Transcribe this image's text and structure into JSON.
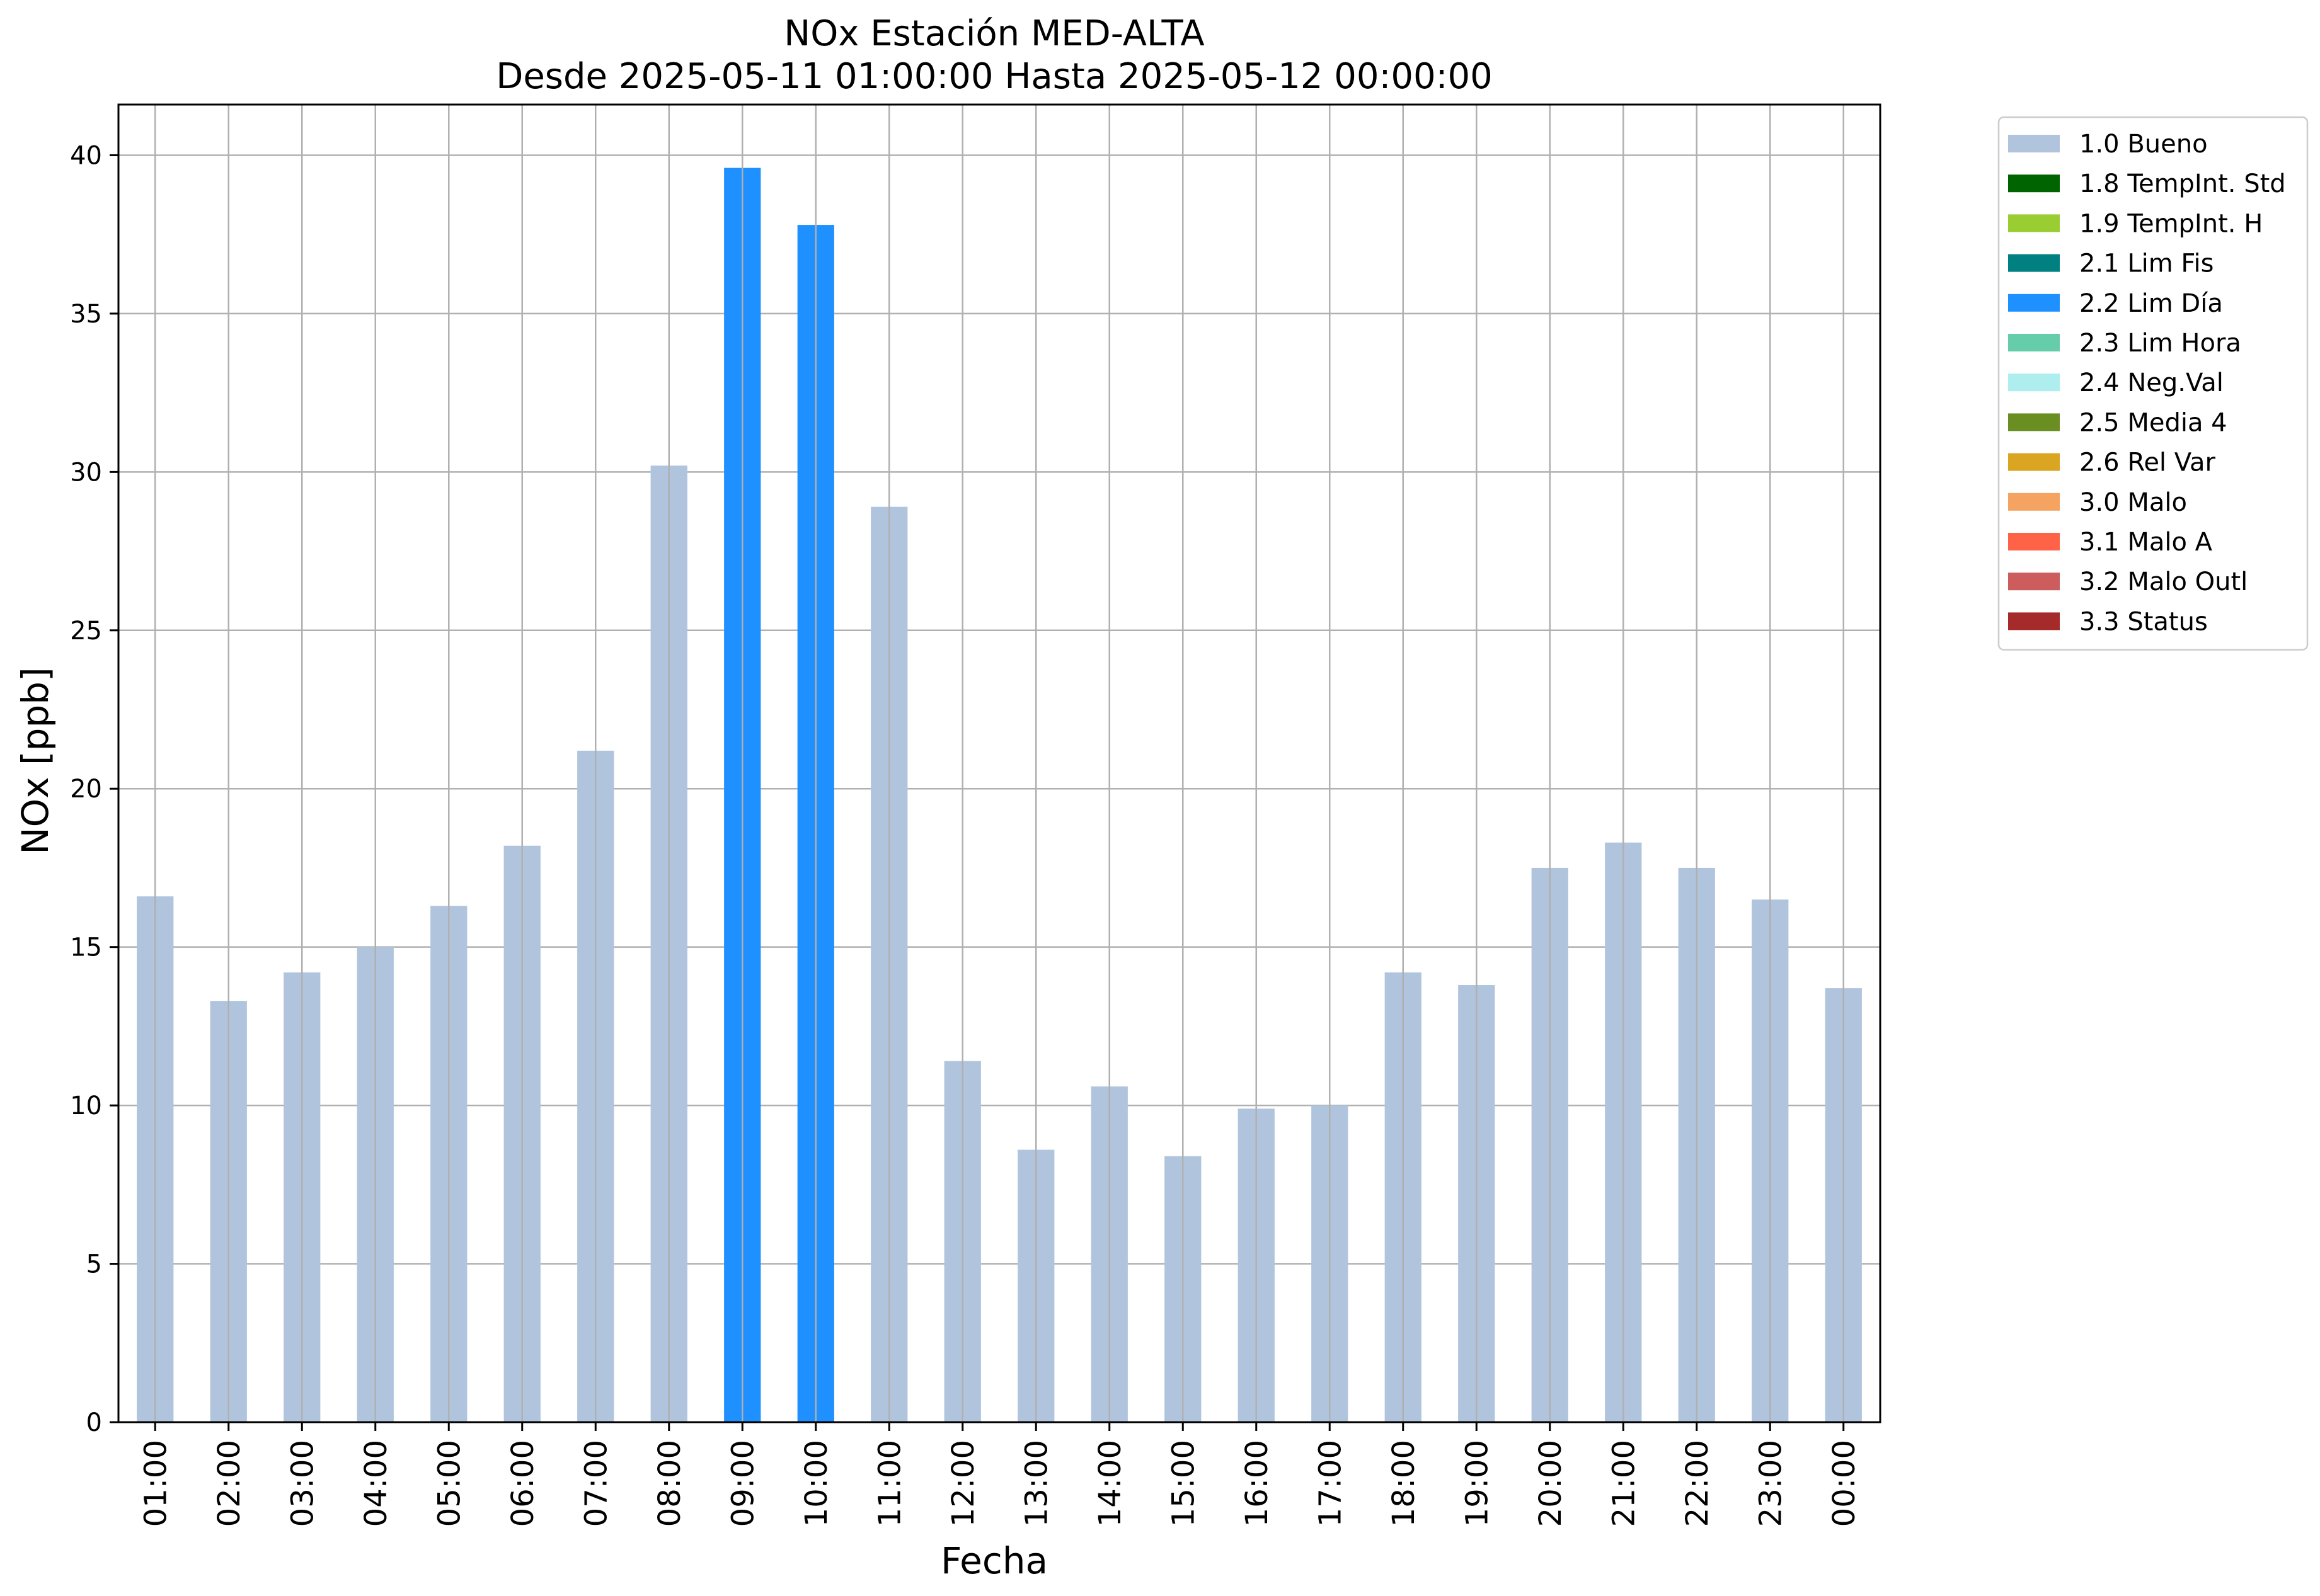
{
  "chart_data": {
    "type": "bar",
    "title": "NOx Estación MED-ALTA",
    "subtitle": "Desde 2025-05-11 01:00:00 Hasta 2025-05-12 00:00:00",
    "xlabel": "Fecha",
    "ylabel": "NOx [ppb]",
    "ylim": [
      0,
      41.6
    ],
    "yticks": [
      0,
      5,
      10,
      15,
      20,
      25,
      30,
      35,
      40
    ],
    "grid": true,
    "legend_position": "outside-top-right",
    "categories": [
      "01:00",
      "02:00",
      "03:00",
      "04:00",
      "05:00",
      "06:00",
      "07:00",
      "08:00",
      "09:00",
      "10:00",
      "11:00",
      "12:00",
      "13:00",
      "14:00",
      "15:00",
      "16:00",
      "17:00",
      "18:00",
      "19:00",
      "20:00",
      "21:00",
      "22:00",
      "23:00",
      "00:00"
    ],
    "values": [
      16.6,
      13.3,
      14.2,
      15.0,
      16.3,
      18.2,
      21.2,
      30.2,
      39.6,
      37.8,
      28.9,
      11.4,
      8.6,
      10.6,
      8.4,
      9.9,
      10.0,
      14.2,
      13.8,
      17.5,
      18.3,
      17.5,
      16.5,
      13.7
    ],
    "flags": [
      "1.0 Bueno",
      "1.0 Bueno",
      "1.0 Bueno",
      "1.0 Bueno",
      "1.0 Bueno",
      "1.0 Bueno",
      "1.0 Bueno",
      "1.0 Bueno",
      "2.2 Lim Día",
      "2.2 Lim Día",
      "1.0 Bueno",
      "1.0 Bueno",
      "1.0 Bueno",
      "1.0 Bueno",
      "1.0 Bueno",
      "1.0 Bueno",
      "1.0 Bueno",
      "1.0 Bueno",
      "1.0 Bueno",
      "1.0 Bueno",
      "1.0 Bueno",
      "1.0 Bueno",
      "1.0 Bueno",
      "1.0 Bueno"
    ],
    "legend": [
      {
        "name": "1.0 Bueno",
        "color": "#b0c4de"
      },
      {
        "name": "1.8 TempInt. Std",
        "color": "#006400"
      },
      {
        "name": "1.9 TempInt. H",
        "color": "#9acd32"
      },
      {
        "name": "2.1 Lim Fis",
        "color": "#008080"
      },
      {
        "name": "2.2 Lim Día",
        "color": "#1e90ff"
      },
      {
        "name": "2.3 Lim Hora",
        "color": "#66cdaa"
      },
      {
        "name": "2.4 Neg.Val",
        "color": "#afeeee"
      },
      {
        "name": "2.5 Media 4",
        "color": "#6b8e23"
      },
      {
        "name": "2.6 Rel Var",
        "color": "#daa520"
      },
      {
        "name": "3.0 Malo",
        "color": "#f4a460"
      },
      {
        "name": "3.1 Malo A",
        "color": "#ff6347"
      },
      {
        "name": "3.2 Malo Outl",
        "color": "#cd5c5c"
      },
      {
        "name": "3.3 Status",
        "color": "#a52a2a"
      }
    ]
  }
}
